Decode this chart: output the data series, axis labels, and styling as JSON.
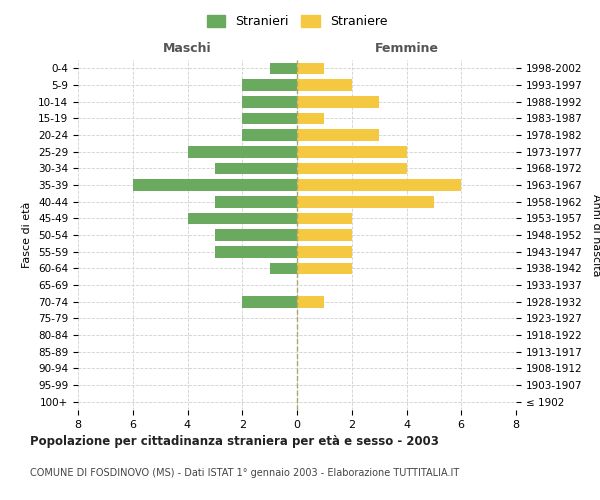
{
  "age_groups": [
    "100+",
    "95-99",
    "90-94",
    "85-89",
    "80-84",
    "75-79",
    "70-74",
    "65-69",
    "60-64",
    "55-59",
    "50-54",
    "45-49",
    "40-44",
    "35-39",
    "30-34",
    "25-29",
    "20-24",
    "15-19",
    "10-14",
    "5-9",
    "0-4"
  ],
  "birth_years": [
    "≤ 1902",
    "1903-1907",
    "1908-1912",
    "1913-1917",
    "1918-1922",
    "1923-1927",
    "1928-1932",
    "1933-1937",
    "1938-1942",
    "1943-1947",
    "1948-1952",
    "1953-1957",
    "1958-1962",
    "1963-1967",
    "1968-1972",
    "1973-1977",
    "1978-1982",
    "1983-1987",
    "1988-1992",
    "1993-1997",
    "1998-2002"
  ],
  "males": [
    0,
    0,
    0,
    0,
    0,
    0,
    2,
    0,
    1,
    3,
    3,
    4,
    3,
    6,
    3,
    4,
    2,
    2,
    2,
    2,
    1
  ],
  "females": [
    0,
    0,
    0,
    0,
    0,
    0,
    1,
    0,
    2,
    2,
    2,
    2,
    5,
    6,
    4,
    4,
    3,
    1,
    3,
    2,
    1
  ],
  "color_males": "#6aaa5e",
  "color_females": "#f5c842",
  "title": "Popolazione per cittadinanza straniera per età e sesso - 2003",
  "subtitle": "COMUNE DI FOSDINOVO (MS) - Dati ISTAT 1° gennaio 2003 - Elaborazione TUTTITALIA.IT",
  "xlabel_left": "Maschi",
  "xlabel_right": "Femmine",
  "ylabel_left": "Fasce di età",
  "ylabel_right": "Anni di nascita",
  "legend_males": "Stranieri",
  "legend_females": "Straniere",
  "xlim": 8,
  "background_color": "#ffffff",
  "grid_color": "#d0d0d0"
}
